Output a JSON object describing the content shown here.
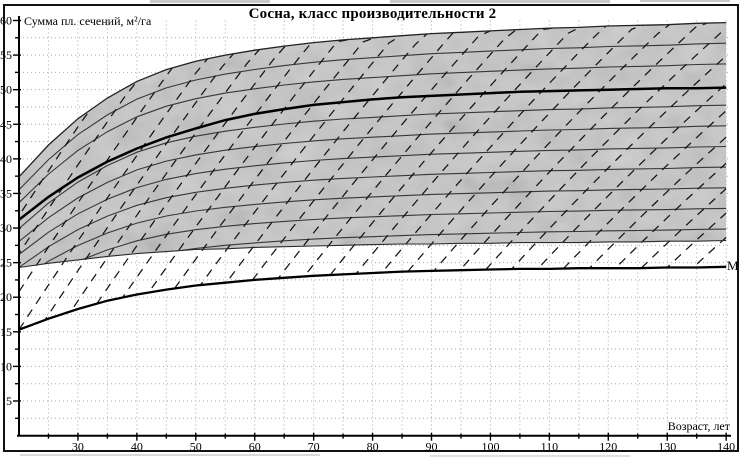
{
  "chart_data": {
    "type": "line",
    "title": "Сосна, класс производительности 2",
    "xlabel": "Возраст, лет",
    "ylabel": "Сумма пл. сечений, м²/га",
    "xlim": [
      20,
      140
    ],
    "ylim": [
      0,
      60
    ],
    "x_major_ticks": [
      30,
      40,
      50,
      60,
      70,
      80,
      90,
      100,
      110,
      120,
      130,
      140
    ],
    "x_minor_step": 5,
    "y_major_ticks": [
      5,
      10,
      15,
      20,
      25,
      30,
      35,
      40,
      45,
      50,
      55,
      60
    ],
    "y_minor_step": 2.5,
    "grid": "fine dotted grid, every 5 years / 2.5 m2",
    "legend": "none",
    "band_fill": "#c8c8c8",
    "curve_color": "#1a1a1a",
    "x": [
      20,
      25,
      30,
      35,
      40,
      45,
      50,
      55,
      60,
      65,
      70,
      75,
      80,
      85,
      90,
      95,
      100,
      105,
      110,
      115,
      120,
      125,
      130,
      135,
      140
    ],
    "series": [
      {
        "name": "band_top_max_stocking",
        "style": "thin-solid",
        "values": [
          37.4,
          42.0,
          45.8,
          48.8,
          51.2,
          52.9,
          54.1,
          55.0,
          55.7,
          56.3,
          56.8,
          57.2,
          57.5,
          57.8,
          58.1,
          58.3,
          58.5,
          58.7,
          58.9,
          59.0,
          59.2,
          59.3,
          59.4,
          59.6,
          59.7
        ]
      },
      {
        "name": "optimal_bold_curve",
        "style": "bold-solid",
        "values": [
          31.2,
          34.5,
          37.3,
          39.6,
          41.5,
          43.1,
          44.4,
          45.6,
          46.5,
          47.2,
          47.8,
          48.2,
          48.6,
          48.9,
          49.1,
          49.3,
          49.5,
          49.7,
          49.8,
          49.9,
          50.0,
          50.1,
          50.2,
          50.2,
          50.3
        ]
      },
      {
        "name": "band_bottom_edge",
        "style": "thin-solid",
        "values": [
          24.3,
          24.9,
          25.4,
          25.9,
          26.3,
          26.6,
          26.9,
          27.0,
          27.2,
          27.3,
          27.4,
          27.5,
          27.6,
          27.7,
          27.7,
          27.8,
          27.8,
          27.9,
          27.9,
          27.9,
          28.0,
          28.0,
          28.1,
          28.1,
          28.2
        ]
      },
      {
        "name": "minimum_curve_M",
        "style": "bold-solid",
        "label": "М",
        "values": [
          15.3,
          16.9,
          18.3,
          19.5,
          20.4,
          21.1,
          21.7,
          22.1,
          22.5,
          22.8,
          23.1,
          23.3,
          23.5,
          23.7,
          23.8,
          23.9,
          24.0,
          24.1,
          24.1,
          24.2,
          24.2,
          24.2,
          24.3,
          24.3,
          24.4
        ]
      }
    ],
    "inner_isolines_fraction_of_top": [
      0.5,
      0.55,
      0.6,
      0.65,
      0.7,
      0.75,
      0.8,
      0.9,
      0.95
    ],
    "hatch": {
      "pattern": "dashed diagonal thinning trajectories",
      "direction": "up-right",
      "region": "between minimum curve M and band top"
    },
    "m_label": "М"
  }
}
